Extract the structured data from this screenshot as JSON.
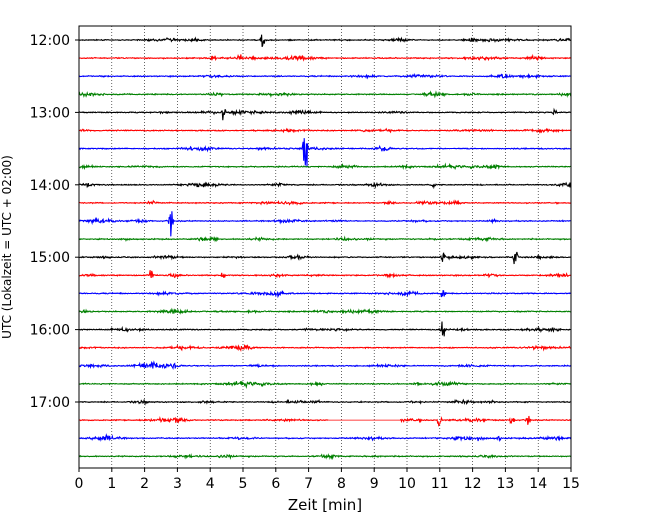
{
  "chart_data": {
    "type": "line",
    "title": "",
    "xlabel": "Zeit  [min]",
    "ylabel": "UTC (Lokalzeit = UTC + 02:00)",
    "xlim": [
      0,
      15
    ],
    "x_ticks": [
      "0",
      "1",
      "2",
      "3",
      "4",
      "5",
      "6",
      "7",
      "8",
      "9",
      "10",
      "11",
      "12",
      "13",
      "14",
      "15"
    ],
    "y_ticks": [
      "12:00",
      "13:00",
      "14:00",
      "15:00",
      "16:00",
      "17:00"
    ],
    "grid": "vertical dotted lines at each minute",
    "trace_start": "12:00",
    "trace_interval_min": 15,
    "trace_count": 24,
    "trace_colors": [
      "#000000",
      "#ff0000",
      "#0000ff",
      "#008000"
    ],
    "events": [
      {
        "trace": 0,
        "minute": 5.6,
        "amplitude": 1.6
      },
      {
        "trace": 0,
        "minute": 12.0,
        "amplitude": 0.7
      },
      {
        "trace": 1,
        "minute": 4.1,
        "amplitude": 1.0
      },
      {
        "trace": 1,
        "minute": 4.9,
        "amplitude": 0.9
      },
      {
        "trace": 4,
        "minute": 4.4,
        "amplitude": 1.3
      },
      {
        "trace": 4,
        "minute": 14.5,
        "amplitude": 0.9
      },
      {
        "trace": 6,
        "minute": 6.9,
        "amplitude": 4.8
      },
      {
        "trace": 8,
        "minute": 10.8,
        "amplitude": 0.6
      },
      {
        "trace": 10,
        "minute": 2.8,
        "amplitude": 3.0
      },
      {
        "trace": 12,
        "minute": 11.1,
        "amplitude": 1.4
      },
      {
        "trace": 12,
        "minute": 13.3,
        "amplitude": 2.5
      },
      {
        "trace": 13,
        "minute": 2.2,
        "amplitude": 1.3
      },
      {
        "trace": 13,
        "minute": 4.4,
        "amplitude": 0.9
      },
      {
        "trace": 14,
        "minute": 11.1,
        "amplitude": 1.7
      },
      {
        "trace": 16,
        "minute": 11.1,
        "amplitude": 1.6
      },
      {
        "trace": 18,
        "minute": 2.9,
        "amplitude": 0.8
      },
      {
        "trace": 19,
        "minute": 10.3,
        "amplitude": 0.6
      },
      {
        "trace": 21,
        "minute": 11.0,
        "amplitude": 1.8
      },
      {
        "trace": 21,
        "minute": 13.2,
        "amplitude": 1.3
      },
      {
        "trace": 21,
        "minute": 13.7,
        "amplitude": 1.0
      },
      {
        "trace": 22,
        "minute": 12.2,
        "amplitude": 0.9
      },
      {
        "trace": 22,
        "minute": 12.8,
        "amplitude": 0.6
      }
    ],
    "gaps": [
      {
        "trace": 21,
        "from_minute": 7.6,
        "to_minute": 9.8
      }
    ]
  }
}
